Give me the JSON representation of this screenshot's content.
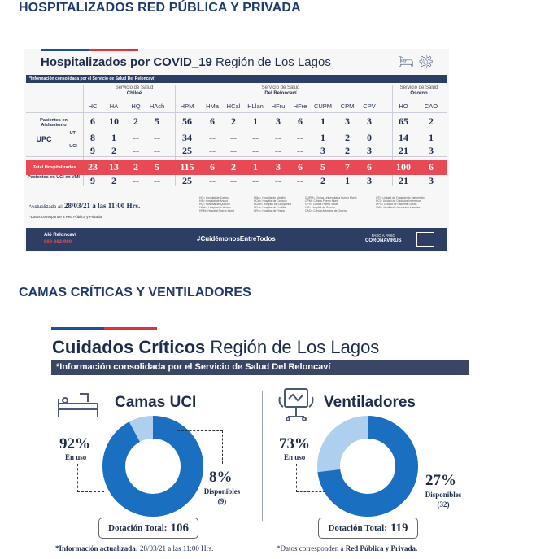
{
  "headings": {
    "section1": "HOSPITALIZADOS RED PÚBLICA Y PRIVADA",
    "section2": "CAMAS CRÍTICAS Y VENTILADORES"
  },
  "hosp": {
    "title_bold": "Hospitalizados por COVID_19",
    "title_rest": " Región de Los Lagos",
    "banner": "*Información consolidada por el Servicio de Salud Del Reloncaví",
    "services": [
      {
        "line1": "Servicio de Salud",
        "line2": "Chiloé"
      },
      {
        "line1": "Servicio de Salud",
        "line2": "Del Reloncaví"
      },
      {
        "line1": "Servicio de Salud",
        "line2": "Osorno"
      }
    ],
    "columns": [
      "HC",
      "HA",
      "HQ",
      "HAch",
      "HPM",
      "HMa",
      "HCal",
      "HLlan",
      "HFru",
      "HFre",
      "CUPM",
      "CPM",
      "CPV",
      "HO",
      "CAO"
    ],
    "row_labels": {
      "aislamiento": "Pacientes en Aislamiento",
      "upc": "UPC",
      "uti": "UTI",
      "uci": "UCI",
      "total": "Total Hospitalizados",
      "vmi": "Pacientes en UCI en VMI"
    },
    "rows": {
      "aislamiento": [
        "6",
        "10",
        "2",
        "5",
        "56",
        "6",
        "2",
        "1",
        "3",
        "6",
        "1",
        "3",
        "3",
        "65",
        "2"
      ],
      "uti": [
        "8",
        "1",
        "--",
        "--",
        "34",
        "--",
        "--",
        "--",
        "--",
        "--",
        "1",
        "2",
        "0",
        "14",
        "1"
      ],
      "uci": [
        "9",
        "2",
        "--",
        "--",
        "25",
        "--",
        "--",
        "--",
        "--",
        "--",
        "3",
        "2",
        "3",
        "21",
        "3"
      ],
      "total": [
        "23",
        "13",
        "2",
        "5",
        "115",
        "6",
        "2",
        "1",
        "3",
        "6",
        "5",
        "7",
        "6",
        "100",
        "6"
      ],
      "vmi": [
        "9",
        "2",
        "--",
        "--",
        "25",
        "--",
        "--",
        "--",
        "--",
        "--",
        "2",
        "1",
        "3",
        "21",
        "3"
      ]
    },
    "actualizado_label": "*Actualizado al:",
    "actualizado_value": "28/03/21 a las 11:00 Hrs.",
    "datos": "*Datos corresponde a Red Pública y Privada.",
    "legend": [
      "HC= Hospital de Castro\nHA= Hospital de Ancud\nHQ= Hospital de Quellón\nHAch= Hospital de Achao\nHPM= Hospital Puerto Montt",
      "HMa= Hospital de Maullín\nHCal= Hospital de Calbuco\nHLlan= Hospital de Llanquihue\nHFru= Hospital de Frutillar\nHFre= Hospital de Fresia",
      "CUPM= Clínica Universitaria Puerto Montt\nCPM= Clínica Puerto Montt\nCPV= Clínica Puerto Varas\nHO= Hospital de Osorno\nCAO= Clínica Alemana de Osorno",
      "UTI= Unidad de Tratamiento Intermedio\nUCI= Unidad de Cuidados Intensivos\nUPC= Unidad de Paciente Crítico\nVMI= Ventilación Mecánica Invasiva"
    ],
    "footer": {
      "alo": "Aló Reloncaví",
      "phone": "800-362-990",
      "hashtag": "#CuidémonosEntreTodos",
      "cv_small": "PASO A PASO",
      "cv": "CORONAVIRUS"
    }
  },
  "critical": {
    "title_bold": "Cuidados Críticos",
    "title_rest": " Región de Los Lagos",
    "banner": "*Información consolidada por el Servicio de Salud Del Reloncaví",
    "camas": {
      "title": "Camas UCI",
      "in_use_pct": "92%",
      "in_use_label": "En uso",
      "free_pct": "8%",
      "free_label": "Disponibles",
      "free_count": "(9)",
      "dotacion_label": "Dotación Total:",
      "dotacion_value": "106",
      "in_use_fraction": 0.92
    },
    "vent": {
      "title": "Ventiladores",
      "in_use_pct": "73%",
      "in_use_label": "En uso",
      "free_pct": "27%",
      "free_label": "Disponibles",
      "free_count": "(32)",
      "dotacion_label": "Dotación Total:",
      "dotacion_value": "119",
      "in_use_fraction": 0.73
    },
    "note_left_label": "*Información actualizada:",
    "note_left_value": "28/03/21 a las 11:00 Hrs.",
    "note_right_a": "*Datos corresponden a ",
    "note_right_b": "Red Pública y Privada."
  },
  "colors": {
    "navy": "#2c3e63",
    "red": "#e74a55",
    "donut_main": "#1a6fc0",
    "donut_light": "#aed0ee"
  }
}
